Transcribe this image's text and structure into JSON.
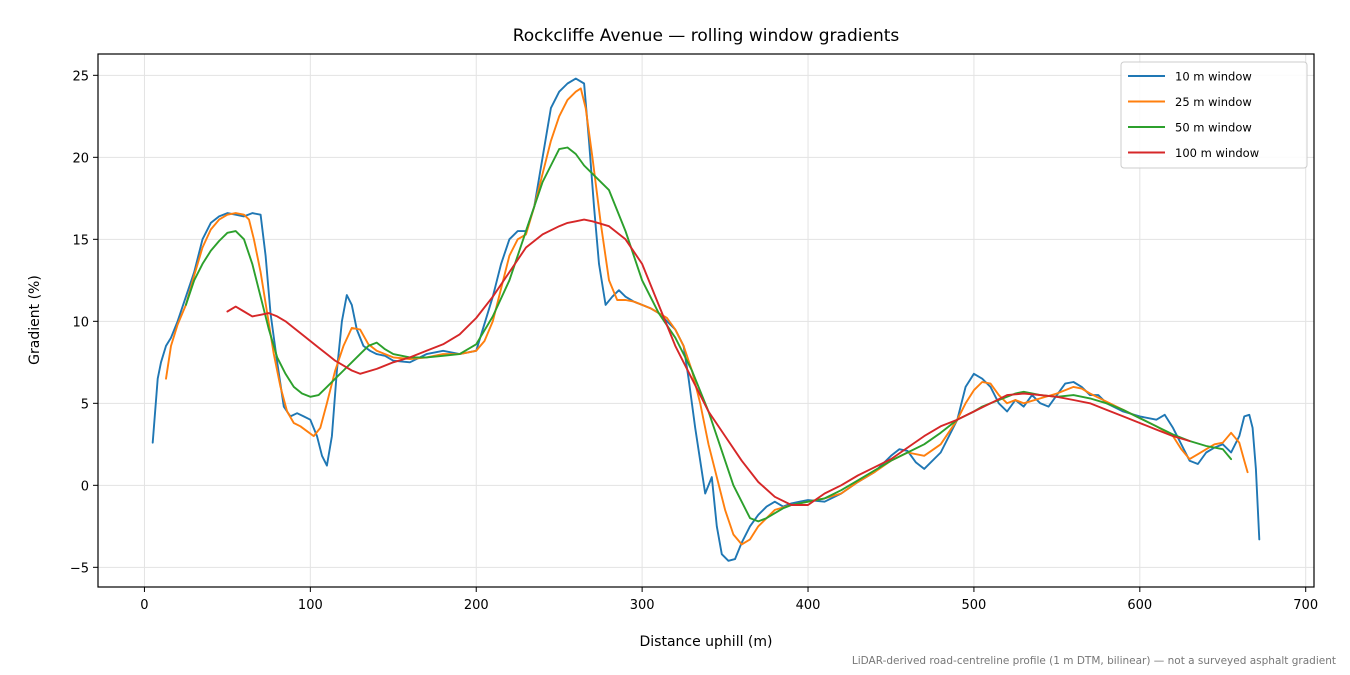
{
  "chart_data": {
    "type": "line",
    "title": "Rockcliffe Avenue — rolling window gradients",
    "xlabel": "Distance uphill (m)",
    "ylabel": "Gradient (%)",
    "xlim": [
      -28,
      705
    ],
    "ylim": [
      -6.2,
      26.3
    ],
    "xticks": [
      0,
      100,
      200,
      300,
      400,
      500,
      600,
      700
    ],
    "yticks": [
      -5,
      0,
      5,
      10,
      15,
      20,
      25
    ],
    "grid": true,
    "legend_position": "top-right",
    "footnote": "LiDAR-derived road-centreline profile (1 m DTM, bilinear) — not a surveyed asphalt gradient",
    "series": [
      {
        "name": "10 m window",
        "color": "#1f77b4",
        "x": [
          5,
          8,
          10,
          13,
          16,
          20,
          25,
          30,
          35,
          40,
          45,
          50,
          55,
          60,
          65,
          70,
          73,
          76,
          80,
          84,
          88,
          92,
          96,
          100,
          104,
          107,
          110,
          113,
          116,
          119,
          122,
          125,
          128,
          132,
          136,
          140,
          145,
          150,
          160,
          170,
          180,
          190,
          200,
          210,
          215,
          220,
          225,
          230,
          235,
          240,
          245,
          250,
          255,
          260,
          265,
          268,
          271,
          274,
          278,
          282,
          286,
          290,
          295,
          300,
          305,
          310,
          315,
          320,
          325,
          328,
          332,
          335,
          338,
          342,
          345,
          348,
          352,
          356,
          360,
          365,
          370,
          375,
          380,
          385,
          390,
          395,
          400,
          410,
          420,
          430,
          440,
          450,
          455,
          460,
          465,
          470,
          480,
          490,
          495,
          500,
          505,
          510,
          515,
          520,
          525,
          530,
          535,
          540,
          545,
          550,
          555,
          560,
          565,
          570,
          575,
          580,
          590,
          600,
          610,
          615,
          620,
          625,
          630,
          635,
          640,
          645,
          650,
          655,
          660,
          663,
          666,
          668,
          670,
          672
        ],
        "y": [
          2.6,
          6.5,
          7.5,
          8.5,
          9.0,
          10.0,
          11.5,
          13.0,
          15.0,
          16.0,
          16.4,
          16.6,
          16.5,
          16.4,
          16.6,
          16.5,
          14.0,
          10.5,
          7.5,
          4.8,
          4.2,
          4.4,
          4.2,
          4.0,
          3.0,
          1.8,
          1.2,
          3.0,
          7.0,
          10.0,
          11.6,
          11.0,
          9.5,
          8.5,
          8.2,
          8.0,
          7.9,
          7.6,
          7.5,
          8.0,
          8.2,
          8.0,
          8.2,
          11.5,
          13.5,
          15.0,
          15.5,
          15.5,
          17.0,
          20.0,
          23.0,
          24.0,
          24.5,
          24.8,
          24.5,
          21.0,
          17.0,
          13.5,
          11.0,
          11.5,
          11.9,
          11.5,
          11.2,
          11.0,
          10.8,
          10.5,
          10.0,
          9.5,
          8.5,
          6.5,
          3.5,
          1.5,
          -0.5,
          0.5,
          -2.5,
          -4.2,
          -4.6,
          -4.5,
          -3.5,
          -2.5,
          -1.8,
          -1.3,
          -1.0,
          -1.3,
          -1.1,
          -1.0,
          -0.9,
          -1.0,
          -0.5,
          0.2,
          0.8,
          1.8,
          2.2,
          2.1,
          1.4,
          1.0,
          2.0,
          4.0,
          6.0,
          6.8,
          6.5,
          6.0,
          5.0,
          4.5,
          5.2,
          4.8,
          5.5,
          5.0,
          4.8,
          5.5,
          6.2,
          6.3,
          6.0,
          5.5,
          5.5,
          5.0,
          4.5,
          4.2,
          4.0,
          4.3,
          3.5,
          2.5,
          1.5,
          1.3,
          2.0,
          2.3,
          2.5,
          2.0,
          3.0,
          4.2,
          4.3,
          3.5,
          1.0,
          -3.3
        ]
      },
      {
        "name": "25 m window",
        "color": "#ff7f0e",
        "x": [
          13,
          16,
          20,
          25,
          30,
          35,
          40,
          45,
          50,
          55,
          60,
          63,
          66,
          70,
          74,
          78,
          82,
          86,
          90,
          94,
          98,
          102,
          106,
          110,
          115,
          120,
          125,
          130,
          135,
          140,
          150,
          160,
          170,
          180,
          190,
          200,
          205,
          210,
          215,
          220,
          225,
          230,
          235,
          240,
          245,
          250,
          255,
          260,
          263,
          266,
          270,
          275,
          280,
          285,
          290,
          295,
          300,
          305,
          310,
          315,
          320,
          325,
          330,
          335,
          340,
          345,
          350,
          355,
          360,
          365,
          370,
          375,
          380,
          390,
          400,
          410,
          420,
          430,
          440,
          450,
          460,
          470,
          480,
          490,
          495,
          500,
          505,
          510,
          515,
          520,
          525,
          530,
          540,
          550,
          560,
          565,
          570,
          580,
          590,
          600,
          610,
          620,
          625,
          630,
          635,
          640,
          645,
          650,
          655,
          660,
          663,
          665
        ],
        "y": [
          6.5,
          8.5,
          9.8,
          11.0,
          12.8,
          14.5,
          15.6,
          16.2,
          16.5,
          16.6,
          16.5,
          16.2,
          15.0,
          13.0,
          10.5,
          8.0,
          6.0,
          4.5,
          3.8,
          3.6,
          3.3,
          3.0,
          3.5,
          5.0,
          7.0,
          8.5,
          9.6,
          9.5,
          8.6,
          8.2,
          7.8,
          7.7,
          7.8,
          8.0,
          8.0,
          8.2,
          8.8,
          10.0,
          12.0,
          14.0,
          15.0,
          15.3,
          17.0,
          19.0,
          21.0,
          22.5,
          23.5,
          24.0,
          24.2,
          23.0,
          20.0,
          16.0,
          12.5,
          11.3,
          11.3,
          11.2,
          11.0,
          10.8,
          10.5,
          10.2,
          9.5,
          8.5,
          7.0,
          5.0,
          2.5,
          0.5,
          -1.5,
          -3.0,
          -3.6,
          -3.3,
          -2.5,
          -2.0,
          -1.5,
          -1.2,
          -1.0,
          -0.8,
          -0.5,
          0.2,
          0.8,
          1.5,
          2.0,
          1.8,
          2.5,
          4.0,
          5.0,
          5.8,
          6.3,
          6.2,
          5.5,
          5.0,
          5.2,
          5.0,
          5.3,
          5.6,
          6.0,
          5.9,
          5.6,
          5.1,
          4.6,
          4.1,
          3.6,
          3.0,
          2.2,
          1.6,
          1.9,
          2.2,
          2.5,
          2.6,
          3.2,
          2.6,
          1.5,
          0.8
        ]
      },
      {
        "name": "50 m window",
        "color": "#2ca02c",
        "x": [
          25,
          30,
          35,
          40,
          45,
          50,
          55,
          60,
          65,
          70,
          75,
          80,
          85,
          90,
          95,
          100,
          105,
          110,
          115,
          120,
          125,
          130,
          135,
          140,
          145,
          150,
          160,
          170,
          180,
          190,
          200,
          210,
          220,
          230,
          235,
          240,
          245,
          250,
          255,
          260,
          265,
          270,
          280,
          290,
          300,
          310,
          320,
          330,
          340,
          345,
          350,
          355,
          360,
          365,
          370,
          375,
          380,
          385,
          390,
          400,
          410,
          420,
          430,
          440,
          450,
          460,
          470,
          480,
          490,
          500,
          505,
          510,
          515,
          520,
          525,
          530,
          540,
          550,
          560,
          570,
          580,
          590,
          600,
          610,
          620,
          630,
          640,
          650,
          655
        ],
        "y": [
          11.0,
          12.5,
          13.5,
          14.3,
          14.9,
          15.4,
          15.5,
          15.0,
          13.5,
          11.5,
          9.5,
          7.8,
          6.8,
          6.0,
          5.6,
          5.4,
          5.5,
          6.0,
          6.5,
          7.0,
          7.5,
          8.0,
          8.5,
          8.7,
          8.3,
          8.0,
          7.8,
          7.8,
          7.9,
          8.0,
          8.6,
          10.3,
          12.5,
          15.5,
          17.0,
          18.5,
          19.5,
          20.5,
          20.6,
          20.2,
          19.5,
          19.0,
          18.0,
          15.5,
          12.5,
          10.5,
          9.0,
          7.0,
          4.5,
          3.0,
          1.5,
          0.0,
          -1.0,
          -2.0,
          -2.2,
          -2.0,
          -1.7,
          -1.4,
          -1.2,
          -1.0,
          -0.8,
          -0.3,
          0.3,
          0.9,
          1.5,
          2.0,
          2.5,
          3.2,
          4.0,
          4.5,
          4.8,
          5.0,
          5.2,
          5.4,
          5.6,
          5.7,
          5.5,
          5.4,
          5.5,
          5.3,
          5.0,
          4.6,
          4.1,
          3.6,
          3.1,
          2.7,
          2.4,
          2.2,
          1.6
        ]
      },
      {
        "name": "100 m window",
        "color": "#d62728",
        "x": [
          50,
          55,
          60,
          65,
          70,
          75,
          80,
          85,
          90,
          95,
          100,
          105,
          110,
          115,
          120,
          125,
          130,
          140,
          150,
          160,
          170,
          180,
          190,
          200,
          210,
          220,
          230,
          240,
          250,
          255,
          260,
          265,
          270,
          280,
          290,
          300,
          310,
          320,
          330,
          340,
          350,
          360,
          370,
          380,
          390,
          400,
          410,
          420,
          430,
          440,
          450,
          460,
          470,
          480,
          490,
          500,
          510,
          520,
          530,
          540,
          550,
          560,
          570,
          580,
          590,
          600,
          610,
          620,
          630
        ],
        "y": [
          10.6,
          10.9,
          10.6,
          10.3,
          10.4,
          10.5,
          10.3,
          10.0,
          9.6,
          9.2,
          8.8,
          8.4,
          8.0,
          7.6,
          7.3,
          7.0,
          6.8,
          7.1,
          7.5,
          7.8,
          8.2,
          8.6,
          9.2,
          10.2,
          11.5,
          13.0,
          14.5,
          15.3,
          15.8,
          16.0,
          16.1,
          16.2,
          16.1,
          15.8,
          15.0,
          13.5,
          11.0,
          8.5,
          6.5,
          4.5,
          3.0,
          1.5,
          0.2,
          -0.7,
          -1.2,
          -1.2,
          -0.5,
          0.0,
          0.6,
          1.1,
          1.6,
          2.3,
          3.0,
          3.6,
          4.0,
          4.5,
          5.0,
          5.5,
          5.6,
          5.5,
          5.4,
          5.2,
          5.0,
          4.6,
          4.2,
          3.8,
          3.4,
          3.0,
          2.7
        ]
      }
    ]
  }
}
